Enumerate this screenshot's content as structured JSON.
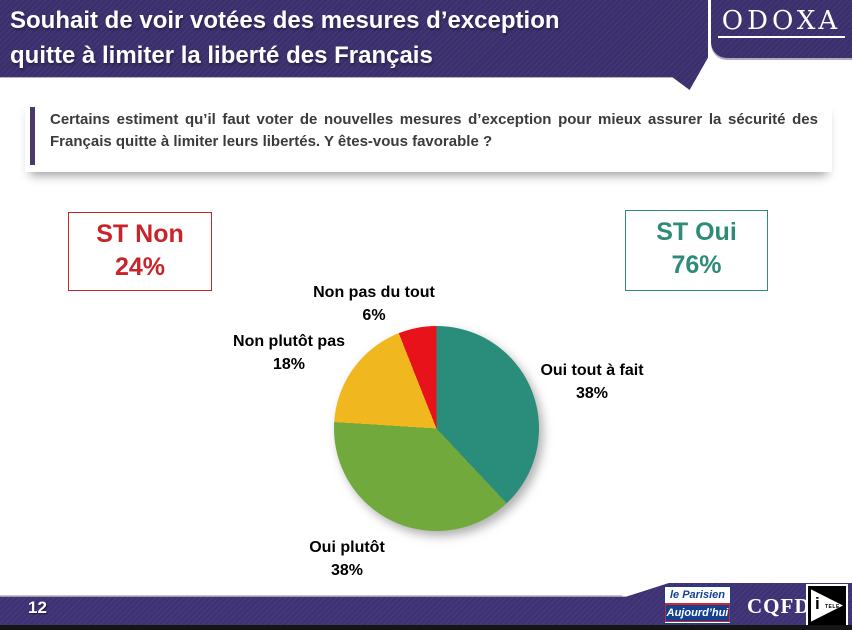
{
  "theme": {
    "header_purple": "#3B2F6D",
    "footer_purple": "#3E3174",
    "accent_bar_purple": "#4B3A69"
  },
  "header": {
    "title_line1": "Souhait de voir votées des mesures d’exception",
    "title_line2": "quitte à limiter la liberté des Français",
    "logo_text": "ODOXA"
  },
  "question": {
    "text": "Certains estiment qu’il faut voter de nouvelles mesures d’exception pour mieux assurer la sécurité des Français quitte à limiter leurs libertés. Y êtes-vous favorable ?"
  },
  "summary_boxes": {
    "st_non": {
      "label": "ST Non",
      "value": "24%",
      "color": "#C9242B"
    },
    "st_oui": {
      "label": "ST Oui",
      "value": "76%",
      "color": "#2E8B79"
    }
  },
  "chart_data": {
    "type": "pie",
    "title": "",
    "start_angle_deg": 0,
    "direction": "clockwise",
    "slices": [
      {
        "label": "Oui tout à fait",
        "pct": "38%",
        "value": 38,
        "color": "#2A8C7B"
      },
      {
        "label": "Oui plutôt",
        "pct": "38%",
        "value": 38,
        "color": "#72A93C"
      },
      {
        "label": "Non plutôt pas",
        "pct": "18%",
        "value": 18,
        "color": "#F0B71F"
      },
      {
        "label": "Non pas du tout",
        "pct": "6%",
        "value": 6,
        "color": "#E8131A"
      }
    ]
  },
  "footer": {
    "page_number": "12",
    "logos": {
      "parisien_line1": "le Parisien",
      "parisien_line2": "Aujourd’hui",
      "cqfd": "CQFD",
      "itele_i": "i",
      "itele_text": "TELE"
    }
  }
}
